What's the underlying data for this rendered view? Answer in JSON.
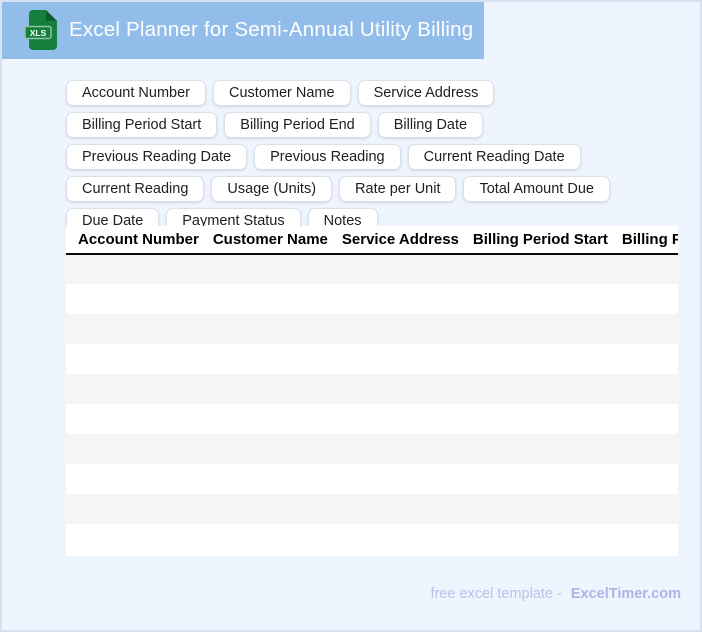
{
  "header": {
    "title": "Excel Planner for Semi-Annual Utility Billing",
    "file_icon_label": "XLS"
  },
  "chips": [
    "Account Number",
    "Customer Name",
    "Service Address",
    "Billing Period Start",
    "Billing Period End",
    "Billing Date",
    "Previous Reading Date",
    "Previous Reading",
    "Current Reading Date",
    "Current Reading",
    "Usage (Units)",
    "Rate per Unit",
    "Total Amount Due",
    "Due Date",
    "Payment Status",
    "Notes"
  ],
  "table": {
    "columns": [
      "Account Number",
      "Customer Name",
      "Service Address",
      "Billing Period Start",
      "Billing Period End"
    ],
    "row_count": 10
  },
  "footer": {
    "tagline": "free excel template -",
    "brand": "ExcelTimer.com"
  },
  "colors": {
    "header_bg": "#92bce9",
    "page_bg": "#eff5fe",
    "page_border": "#d8e1f0",
    "icon_green": "#157f3e",
    "icon_green_dark": "#0c5e2c",
    "icon_band_border": "#8fc3a4",
    "row_stripe": "#f5f5f5",
    "footer_text": "#b7c3e6",
    "footer_brand": "#a8b7e6"
  }
}
